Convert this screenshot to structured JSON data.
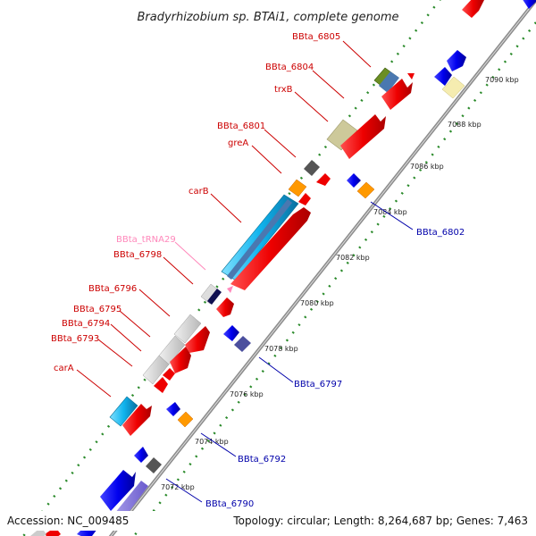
{
  "title": "Bradyrhizobium sp. BTAi1, complete genome",
  "footer": {
    "accession": "Accession: NC_009485",
    "summary": "Topology: circular; Length: 8,264,687 bp; Genes: 7,463"
  },
  "colors": {
    "backbone": "#9a9a9a",
    "tick_dots": "#2a8a2a",
    "forward_label": "#cc0000",
    "reverse_label": "#0000aa",
    "trna_label": "#ff88bb"
  },
  "kbp_ticks": [
    "7072 kbp",
    "7074 kbp",
    "7076 kbp",
    "7078 kbp",
    "7080 kbp",
    "7082 kbp",
    "7084 kbp",
    "7086 kbp",
    "7088 kbp",
    "7090 kbp"
  ],
  "forward_labels": [
    {
      "text": "BBta_6805",
      "kind": "forward"
    },
    {
      "text": "BBta_6804",
      "kind": "forward"
    },
    {
      "text": "trxB",
      "kind": "forward"
    },
    {
      "text": "BBta_6801",
      "kind": "forward"
    },
    {
      "text": "greA",
      "kind": "forward"
    },
    {
      "text": "carB",
      "kind": "forward"
    },
    {
      "text": "BBta_tRNA29",
      "kind": "trna"
    },
    {
      "text": "BBta_6798",
      "kind": "forward"
    },
    {
      "text": "BBta_6796",
      "kind": "forward"
    },
    {
      "text": "BBta_6795",
      "kind": "forward"
    },
    {
      "text": "BBta_6794",
      "kind": "forward"
    },
    {
      "text": "BBta_6793",
      "kind": "forward"
    },
    {
      "text": "carA",
      "kind": "forward"
    }
  ],
  "reverse_labels": [
    {
      "text": "BBta_6802"
    },
    {
      "text": "BBta_6797"
    },
    {
      "text": "BBta_6792"
    },
    {
      "text": "BBta_6790"
    }
  ]
}
